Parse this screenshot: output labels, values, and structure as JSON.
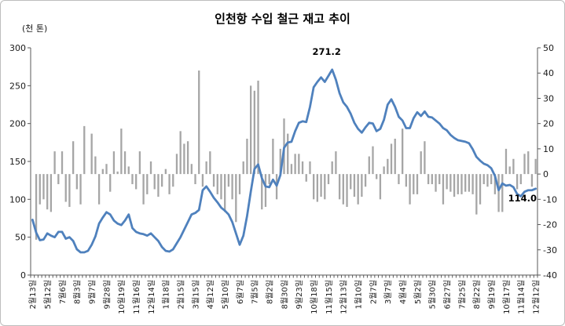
{
  "chart_data": {
    "type": "line+bar",
    "title": "인천항 수입 철근 재고 추이",
    "left_axis": {
      "unit_label": "(천 톤)",
      "min": 0,
      "max": 300,
      "step": 50,
      "ticks": [
        300,
        250,
        200,
        150,
        100,
        50,
        0
      ]
    },
    "right_axis": {
      "min": -40,
      "max": 50,
      "step": 10,
      "ticks": [
        50,
        40,
        30,
        20,
        10,
        0,
        -10,
        -20,
        -30,
        -40
      ]
    },
    "x_labels": [
      "2월13일",
      "5월12일",
      "7월6일",
      "8월3일",
      "9월7일",
      "9월28일",
      "10월19일",
      "11월16일",
      "12월14일",
      "1월18일",
      "2월15일",
      "3월15일",
      "4월12일",
      "5월10일",
      "6월7일",
      "7월5일",
      "8월2일",
      "8월30일",
      "9월23일",
      "10월18일",
      "11월15일",
      "12월13일",
      "1월10일",
      "2월7일",
      "3월7일",
      "4월4일",
      "5월2일",
      "5월30일",
      "6월27일",
      "7월25일",
      "8월22일",
      "9월19일",
      "10월17일",
      "11월14일",
      "12월12일"
    ],
    "label_every": 4,
    "grid": false,
    "legend": "none",
    "series": [
      {
        "name": "inventory-line",
        "type": "line",
        "axis": "left",
        "color": "#4f81bd",
        "values": [
          73,
          56,
          46,
          47,
          55,
          52,
          50,
          57,
          57,
          48,
          50,
          45,
          34,
          30,
          30,
          32,
          40,
          51,
          68,
          76,
          83,
          80,
          72,
          68,
          66,
          72,
          80,
          62,
          57,
          55,
          54,
          52,
          55,
          50,
          45,
          37,
          32,
          31,
          34,
          42,
          50,
          60,
          70,
          80,
          82,
          86,
          112,
          117,
          110,
          102,
          96,
          89,
          85,
          80,
          70,
          55,
          40,
          52,
          78,
          110,
          140,
          146,
          128,
          117,
          116,
          126,
          118,
          132,
          168,
          175,
          176,
          190,
          201,
          203,
          202,
          222,
          248,
          255,
          261,
          255,
          263,
          271.2,
          258,
          240,
          228,
          222,
          213,
          201,
          193,
          188,
          195,
          201,
          200,
          190,
          193,
          205,
          225,
          232,
          222,
          209,
          204,
          194,
          194,
          207,
          215,
          210,
          216,
          209,
          208,
          204,
          200,
          194,
          191,
          185,
          181,
          178,
          177,
          176,
          174,
          166,
          156,
          151,
          147,
          145,
          141,
          131,
          112,
          121,
          118,
          119,
          116,
          107,
          104,
          110,
          112,
          112,
          114
        ]
      },
      {
        "name": "weekly-change-bars",
        "type": "bar",
        "axis": "right",
        "color": "#a6a6a6",
        "values": [
          0,
          -26,
          -12,
          -10,
          -14,
          -15,
          9,
          -4,
          9,
          -11,
          -13,
          13,
          -6,
          -12,
          19,
          0,
          16,
          7,
          -12,
          2,
          4,
          -7,
          9,
          1,
          18,
          9,
          3,
          -4,
          -6,
          9,
          -12,
          -8,
          5,
          -6,
          -9,
          -5,
          2,
          -8,
          -5,
          8,
          17,
          12,
          13,
          4,
          -4,
          41,
          -5,
          5,
          9,
          -5,
          -8,
          -10,
          -15,
          -5,
          -10,
          -19,
          -8,
          5,
          14,
          35,
          33,
          37,
          -14,
          -13,
          -4,
          14,
          -10,
          10,
          22,
          16,
          4,
          8,
          8,
          5,
          -3,
          5,
          -10,
          -11,
          -9,
          -10,
          -4,
          5,
          9,
          -10,
          -12,
          -13,
          -6,
          -9,
          -12,
          -9,
          -5,
          7,
          11,
          -2,
          -10,
          3,
          6,
          12,
          14,
          -4,
          18,
          -5,
          -12,
          -8,
          -8,
          9,
          13,
          -4,
          -4,
          -7,
          -4,
          -12,
          -6,
          -7,
          -9,
          -8,
          -8,
          -7,
          -7,
          -8,
          -16,
          -12,
          -4,
          -5,
          -4,
          -8,
          -15,
          -15,
          10,
          3,
          6,
          -6,
          -4,
          8,
          9,
          -5,
          6
        ]
      }
    ],
    "annotations": [
      {
        "text": "271.2",
        "series": "inventory-line",
        "index": 81
      },
      {
        "text": "114.0",
        "series": "inventory-line",
        "index": 136
      }
    ],
    "colors": {
      "line": "#4f81bd",
      "bar": "#a6a6a6",
      "axis": "#595959",
      "tick_text": "#1a1a1a"
    }
  }
}
